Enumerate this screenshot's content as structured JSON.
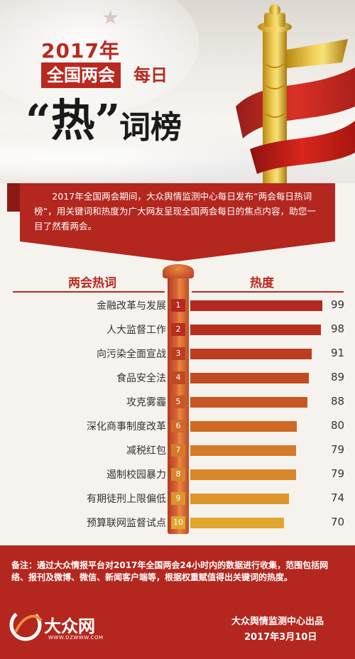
{
  "header": {
    "year_title": "2017年",
    "title_box": "全国两会",
    "title_daily": "每日",
    "hot_big": "“热”",
    "hot_rest": "词榜"
  },
  "intro": "2017年全国两会期间，大众舆情监测中心每日发布“两会每日热词榜”，用关键词和热度为广大网友呈现全国两会每日的焦点内容，助您一目了然看两会。",
  "columns": {
    "left": "两会热词",
    "right": "热度"
  },
  "chart_data": {
    "type": "bar",
    "orientation": "horizontal",
    "categories": [
      "金融改革与发展",
      "人大监督工作",
      "向污染全面宣战",
      "食品安全法",
      "攻克雾霾",
      "深化商事制度改革",
      "减税红包",
      "遏制校园暴力",
      "有期徒刑上限偏低",
      "预算联网监督试点"
    ],
    "ranks": [
      "1",
      "2",
      "3",
      "4",
      "5",
      "6",
      "7",
      "8",
      "9",
      "10"
    ],
    "values": [
      99,
      98,
      91,
      89,
      88,
      80,
      79,
      79,
      74,
      70
    ],
    "xlim": [
      0,
      100
    ],
    "colors": [
      "#b5281f",
      "#b72e1f",
      "#bc3d20",
      "#c14a22",
      "#c75724",
      "#cf6a26",
      "#d47a28",
      "#d8862a",
      "#dc962b",
      "#e0a62e"
    ]
  },
  "footer": {
    "note": "备注：通过大众情报平台对2017年全国两会24小时内的数据进行收集，范围包括网络、报刊及微博、微信、新闻客户端等，根据权重赋值得出关键词的热度。",
    "brand_cn": "大众网",
    "brand_url": "WWW.DZWWW.COM",
    "producer": "大众舆情监测中心出品",
    "date": "2017年3月10日"
  },
  "colors": {
    "accent": "#b9291f",
    "panel": "#b3271f",
    "gold": "#e0b02a"
  }
}
